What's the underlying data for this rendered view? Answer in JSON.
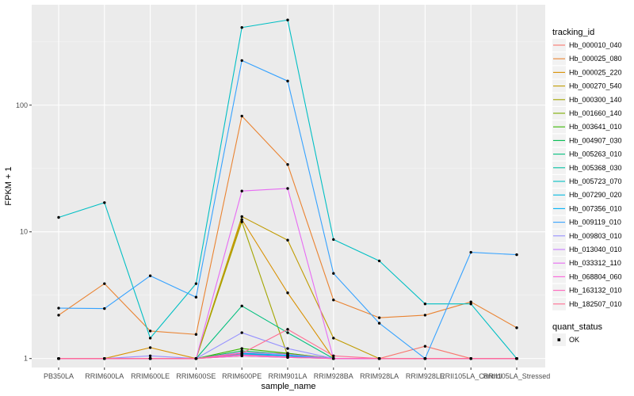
{
  "chart_data": {
    "type": "line",
    "xlabel": "sample_name",
    "ylabel": "FPKM + 1",
    "y_scale": "log10",
    "ylim": [
      0.85,
      620
    ],
    "y_ticks": [
      1,
      10,
      100
    ],
    "y_tick_labels": [
      "1",
      "10",
      "100"
    ],
    "categories": [
      "PB350LA",
      "RRIM600LA",
      "RRIM600LE",
      "RRIM600SE",
      "RRIM600PE",
      "RRIM901LA",
      "RRIM928BA",
      "RRIM928LA",
      "RRIM928LE",
      "RRII105LA_Control",
      "RRII105LA_Stressed"
    ],
    "grid": true,
    "legend_position": "right",
    "legend_title": "tracking_id",
    "series": [
      {
        "name": "Hb_000010_040",
        "color": "#F8766D",
        "values": [
          1,
          1,
          1,
          1,
          1.1,
          1.1,
          1,
          1,
          1.25,
          1,
          1
        ]
      },
      {
        "name": "Hb_000025_080",
        "color": "#EA8331",
        "values": [
          2.2,
          3.9,
          1.65,
          1.55,
          82,
          34,
          2.9,
          2.1,
          2.2,
          2.8,
          1.75
        ]
      },
      {
        "name": "Hb_000025_220",
        "color": "#D89000",
        "values": [
          1,
          1,
          1.22,
          1,
          12.5,
          3.3,
          1,
          1,
          1,
          1,
          1
        ]
      },
      {
        "name": "Hb_000270_540",
        "color": "#C09B00",
        "values": [
          1,
          1,
          1,
          1,
          13.2,
          8.6,
          1.45,
          1,
          1,
          1,
          1
        ]
      },
      {
        "name": "Hb_000300_140",
        "color": "#A3A500",
        "values": [
          1,
          1,
          1,
          1,
          12,
          1.05,
          1,
          1,
          1,
          1,
          1
        ]
      },
      {
        "name": "Hb_001660_140",
        "color": "#7CAE00",
        "values": [
          1,
          1,
          1,
          1,
          1.05,
          1.02,
          1,
          1,
          1,
          1,
          1
        ]
      },
      {
        "name": "Hb_003641_010",
        "color": "#39B600",
        "values": [
          1,
          1,
          1,
          1,
          1.2,
          1.1,
          1,
          1,
          1,
          1,
          1
        ]
      },
      {
        "name": "Hb_004907_030",
        "color": "#00BB4E",
        "values": [
          1,
          1,
          1,
          1,
          1.15,
          1.08,
          1,
          1,
          1,
          1,
          1
        ]
      },
      {
        "name": "Hb_005263_010",
        "color": "#00BF7D",
        "values": [
          1,
          1,
          1,
          1,
          2.6,
          1.6,
          1,
          1,
          1,
          1,
          1
        ]
      },
      {
        "name": "Hb_005368_030",
        "color": "#00C1A3",
        "values": [
          1,
          1,
          1,
          1,
          1.1,
          1.05,
          1,
          1,
          1,
          1,
          1
        ]
      },
      {
        "name": "Hb_005723_070",
        "color": "#00BFC4",
        "values": [
          13,
          17,
          1.45,
          3.9,
          410,
          470,
          8.7,
          5.9,
          2.7,
          2.7,
          1
        ]
      },
      {
        "name": "Hb_007290_020",
        "color": "#00BAE0",
        "values": [
          1,
          1,
          1,
          1,
          1.08,
          1.05,
          1,
          1,
          1,
          1,
          1
        ]
      },
      {
        "name": "Hb_007356_010",
        "color": "#00B0F6",
        "values": [
          1,
          1,
          1,
          1,
          1.1,
          1.06,
          1,
          1,
          1,
          1,
          1
        ]
      },
      {
        "name": "Hb_009119_010",
        "color": "#35A2FF",
        "values": [
          2.5,
          2.48,
          4.5,
          3.05,
          225,
          155,
          4.7,
          1.9,
          1,
          6.9,
          6.6
        ]
      },
      {
        "name": "Hb_009803_010",
        "color": "#9590FF",
        "values": [
          1,
          1,
          1.05,
          1,
          1.6,
          1.2,
          1,
          1,
          1,
          1,
          1
        ]
      },
      {
        "name": "Hb_013040_010",
        "color": "#C77CFF",
        "values": [
          1,
          1,
          1,
          1,
          1.12,
          1.08,
          1,
          1,
          1,
          1,
          1
        ]
      },
      {
        "name": "Hb_033312_110",
        "color": "#E76BF3",
        "values": [
          1,
          1,
          1,
          1,
          21,
          22,
          1,
          1,
          1,
          1,
          1
        ]
      },
      {
        "name": "Hb_068804_060",
        "color": "#FA62DB",
        "values": [
          1,
          1,
          1,
          1,
          1.05,
          1.02,
          1,
          1,
          1,
          1,
          1
        ]
      },
      {
        "name": "Hb_163132_010",
        "color": "#FF62BC",
        "values": [
          1,
          1,
          1,
          1,
          1.07,
          1.03,
          1,
          1,
          1,
          1,
          1
        ]
      },
      {
        "name": "Hb_182507_010",
        "color": "#FF6C91",
        "values": [
          1,
          1,
          1,
          1,
          1.1,
          1.7,
          1.05,
          1,
          1,
          1,
          1
        ]
      }
    ],
    "legend2_title": "quant_status",
    "legend2_items": [
      "OK"
    ]
  }
}
